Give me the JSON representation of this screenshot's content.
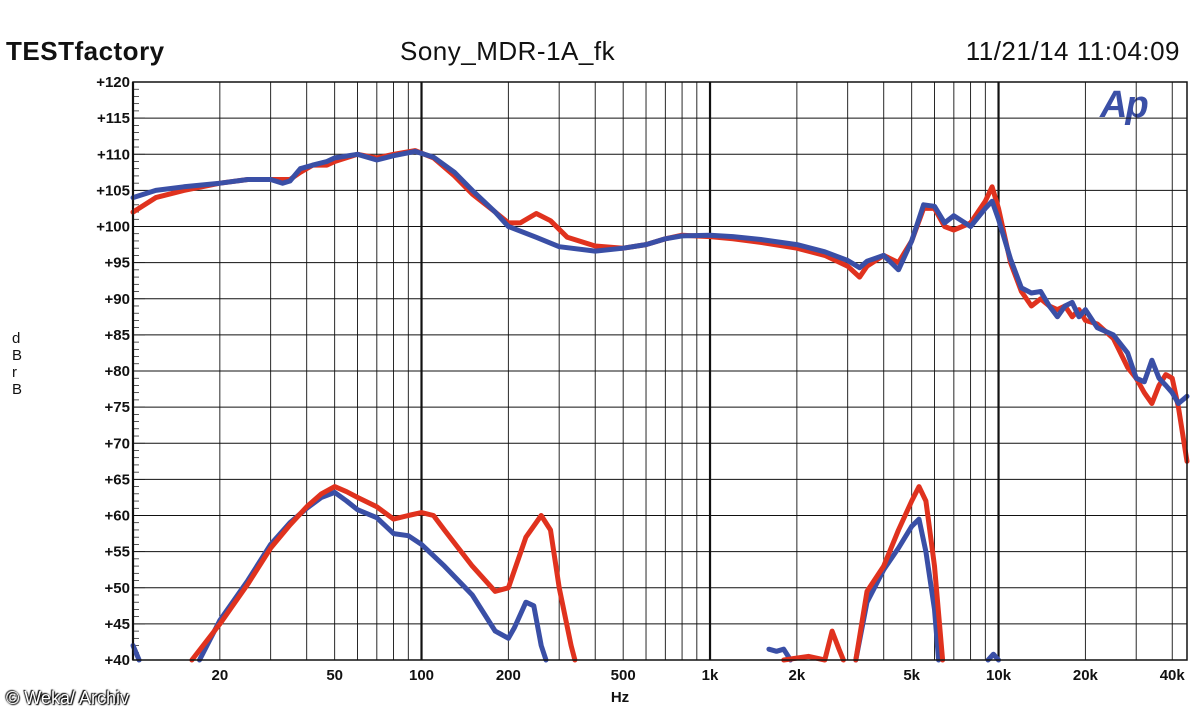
{
  "header": {
    "brand": "TESTfactory",
    "title": "Sony_MDR-1A_fk",
    "timestamp": "11/21/14 11:04:09"
  },
  "logo_text": "Ap",
  "credit": "© Weka/ Archiv",
  "chart_data": {
    "type": "line",
    "xscale": "log",
    "xlabel": "Hz",
    "ylabel": "dBr B",
    "xlim": [
      10,
      45000
    ],
    "ylim": [
      40,
      120
    ],
    "grid": true,
    "x_ticks": [
      {
        "v": 20,
        "label": "20"
      },
      {
        "v": 50,
        "label": "50"
      },
      {
        "v": 100,
        "label": "100"
      },
      {
        "v": 200,
        "label": "200"
      },
      {
        "v": 500,
        "label": "500"
      },
      {
        "v": 1000,
        "label": "1k"
      },
      {
        "v": 2000,
        "label": "2k"
      },
      {
        "v": 5000,
        "label": "5k"
      },
      {
        "v": 10000,
        "label": "10k"
      },
      {
        "v": 20000,
        "label": "20k"
      },
      {
        "v": 40000,
        "label": "40k"
      }
    ],
    "y_ticks": [
      {
        "v": 120,
        "label": "+120"
      },
      {
        "v": 115,
        "label": "+115"
      },
      {
        "v": 110,
        "label": "+110"
      },
      {
        "v": 105,
        "label": "+105"
      },
      {
        "v": 100,
        "label": "+100"
      },
      {
        "v": 95,
        "label": "+95"
      },
      {
        "v": 90,
        "label": "+90"
      },
      {
        "v": 85,
        "label": "+85"
      },
      {
        "v": 80,
        "label": "+80"
      },
      {
        "v": 75,
        "label": "+75"
      },
      {
        "v": 70,
        "label": "+70"
      },
      {
        "v": 65,
        "label": "+65"
      },
      {
        "v": 60,
        "label": "+60"
      },
      {
        "v": 55,
        "label": "+55"
      },
      {
        "v": 50,
        "label": "+50"
      },
      {
        "v": 45,
        "label": "+45"
      },
      {
        "v": 40,
        "label": "+40"
      }
    ],
    "colors": {
      "red": "#e0321e",
      "blue": "#3a4fa6"
    },
    "series": [
      {
        "color": "red",
        "segments": [
          [
            [
              10,
              102
            ],
            [
              12,
              104
            ],
            [
              15,
              105
            ],
            [
              20,
              106
            ],
            [
              25,
              106.5
            ],
            [
              30,
              106.5
            ],
            [
              35,
              106.5
            ],
            [
              38,
              107.5
            ],
            [
              42,
              108.5
            ],
            [
              47,
              108.5
            ],
            [
              50,
              109
            ],
            [
              60,
              110
            ],
            [
              70,
              109.5
            ],
            [
              80,
              110
            ],
            [
              95,
              110.5
            ],
            [
              110,
              109.5
            ],
            [
              130,
              107
            ],
            [
              150,
              104.5
            ],
            [
              180,
              102
            ],
            [
              200,
              100.5
            ],
            [
              220,
              100.5
            ],
            [
              250,
              101.8
            ],
            [
              280,
              100.8
            ],
            [
              320,
              98.5
            ],
            [
              400,
              97.3
            ],
            [
              500,
              97
            ],
            [
              600,
              97.5
            ],
            [
              700,
              98.3
            ],
            [
              800,
              98.8
            ],
            [
              1000,
              98.6
            ],
            [
              1200,
              98.3
            ],
            [
              1500,
              97.8
            ],
            [
              2000,
              97
            ],
            [
              2500,
              96
            ],
            [
              3000,
              94.5
            ],
            [
              3300,
              93
            ],
            [
              3500,
              94.5
            ],
            [
              4000,
              96
            ],
            [
              4500,
              95
            ],
            [
              5000,
              98
            ],
            [
              5500,
              102.5
            ],
            [
              6000,
              102.5
            ],
            [
              6500,
              100
            ],
            [
              7000,
              99.5
            ],
            [
              8000,
              100.5
            ],
            [
              9000,
              103.5
            ],
            [
              9500,
              105.5
            ],
            [
              10000,
              102.5
            ],
            [
              11000,
              95
            ],
            [
              12000,
              91
            ],
            [
              13000,
              89
            ],
            [
              14000,
              90
            ],
            [
              15000,
              89
            ],
            [
              16000,
              88.5
            ],
            [
              17000,
              89
            ],
            [
              18000,
              87.5
            ],
            [
              19000,
              88.5
            ],
            [
              20000,
              87
            ],
            [
              22000,
              86.5
            ],
            [
              25000,
              84.5
            ],
            [
              28000,
              80.5
            ],
            [
              30000,
              79
            ],
            [
              32000,
              77
            ],
            [
              34000,
              75.5
            ],
            [
              36000,
              78
            ],
            [
              38000,
              79.5
            ],
            [
              40000,
              79
            ],
            [
              42000,
              75
            ],
            [
              45000,
              67.5
            ]
          ]
        ]
      },
      {
        "color": "blue",
        "segments": [
          [
            [
              10,
              104
            ],
            [
              12,
              105
            ],
            [
              15,
              105.5
            ],
            [
              20,
              106
            ],
            [
              25,
              106.5
            ],
            [
              30,
              106.5
            ],
            [
              33,
              106
            ],
            [
              35,
              106.3
            ],
            [
              38,
              108
            ],
            [
              42,
              108.5
            ],
            [
              47,
              109
            ],
            [
              50,
              109.5
            ],
            [
              60,
              110
            ],
            [
              70,
              109.2
            ],
            [
              80,
              109.8
            ],
            [
              95,
              110.4
            ],
            [
              110,
              109.6
            ],
            [
              130,
              107.5
            ],
            [
              150,
              105
            ],
            [
              180,
              102
            ],
            [
              200,
              100
            ],
            [
              250,
              98.5
            ],
            [
              300,
              97.2
            ],
            [
              400,
              96.6
            ],
            [
              500,
              97
            ],
            [
              600,
              97.5
            ],
            [
              700,
              98.3
            ],
            [
              800,
              98.7
            ],
            [
              1000,
              98.8
            ],
            [
              1200,
              98.6
            ],
            [
              1500,
              98.2
            ],
            [
              2000,
              97.5
            ],
            [
              2500,
              96.5
            ],
            [
              3000,
              95.3
            ],
            [
              3300,
              94.3
            ],
            [
              3500,
              95.2
            ],
            [
              4000,
              96
            ],
            [
              4500,
              94
            ],
            [
              5000,
              98
            ],
            [
              5500,
              103
            ],
            [
              6000,
              102.8
            ],
            [
              6500,
              100.5
            ],
            [
              7000,
              101.5
            ],
            [
              8000,
              100
            ],
            [
              9000,
              102.5
            ],
            [
              9500,
              103.5
            ],
            [
              10000,
              101
            ],
            [
              11000,
              95.5
            ],
            [
              12000,
              91.5
            ],
            [
              13000,
              90.8
            ],
            [
              14000,
              91
            ],
            [
              15000,
              89
            ],
            [
              16000,
              87.5
            ],
            [
              17000,
              89
            ],
            [
              18000,
              89.5
            ],
            [
              19000,
              87.5
            ],
            [
              20000,
              88.5
            ],
            [
              22000,
              86
            ],
            [
              25000,
              85
            ],
            [
              28000,
              82.5
            ],
            [
              30000,
              79
            ],
            [
              32000,
              78.5
            ],
            [
              34000,
              81.5
            ],
            [
              36000,
              79
            ],
            [
              38000,
              78
            ],
            [
              40000,
              77
            ],
            [
              42000,
              75.5
            ],
            [
              45000,
              76.5
            ]
          ],
          [
            [
              10,
              42
            ],
            [
              10.5,
              40
            ]
          ],
          [
            [
              17,
              40
            ],
            [
              20,
              45.5
            ],
            [
              25,
              51
            ],
            [
              30,
              56
            ],
            [
              35,
              59
            ],
            [
              40,
              61
            ],
            [
              45,
              62.5
            ],
            [
              50,
              63.2
            ],
            [
              55,
              62
            ],
            [
              60,
              60.8
            ],
            [
              70,
              59.7
            ],
            [
              80,
              57.5
            ],
            [
              90,
              57.2
            ],
            [
              100,
              56
            ],
            [
              120,
              53
            ],
            [
              150,
              49
            ],
            [
              180,
              44
            ],
            [
              200,
              43
            ],
            [
              210,
              44.5
            ],
            [
              230,
              48
            ],
            [
              245,
              47.5
            ],
            [
              260,
              42
            ],
            [
              270,
              40
            ]
          ],
          [
            [
              1600,
              41.5
            ],
            [
              1700,
              41.2
            ],
            [
              1800,
              41.5
            ],
            [
              1900,
              40
            ]
          ],
          [
            [
              3200,
              40
            ],
            [
              3500,
              48
            ],
            [
              4000,
              52.5
            ],
            [
              4500,
              55.5
            ],
            [
              5000,
              58.5
            ],
            [
              5300,
              59.5
            ],
            [
              5600,
              55
            ],
            [
              6000,
              47
            ],
            [
              6200,
              40
            ]
          ],
          [
            [
              9200,
              40
            ],
            [
              9600,
              40.8
            ],
            [
              10000,
              40
            ]
          ]
        ]
      },
      {
        "color": "red",
        "segments": [
          [
            [
              16,
              40
            ],
            [
              20,
              45
            ],
            [
              25,
              50.5
            ],
            [
              30,
              55.5
            ],
            [
              35,
              58.7
            ],
            [
              40,
              61.2
            ],
            [
              45,
              63
            ],
            [
              50,
              64
            ],
            [
              55,
              63.3
            ],
            [
              60,
              62.5
            ],
            [
              70,
              61.2
            ],
            [
              80,
              59.5
            ],
            [
              90,
              60
            ],
            [
              100,
              60.4
            ],
            [
              110,
              60
            ],
            [
              120,
              58
            ],
            [
              150,
              53
            ],
            [
              180,
              49.5
            ],
            [
              200,
              50
            ],
            [
              230,
              57
            ],
            [
              260,
              60
            ],
            [
              280,
              58
            ],
            [
              300,
              50
            ],
            [
              330,
              42
            ],
            [
              340,
              40
            ]
          ],
          [
            [
              1800,
              40
            ],
            [
              2200,
              40.5
            ],
            [
              2500,
              40
            ],
            [
              2650,
              44
            ],
            [
              2800,
              41.5
            ],
            [
              2900,
              40
            ]
          ],
          [
            [
              3200,
              40
            ],
            [
              3500,
              49.5
            ],
            [
              4000,
              53
            ],
            [
              4500,
              58
            ],
            [
              5000,
              62
            ],
            [
              5300,
              64
            ],
            [
              5600,
              62
            ],
            [
              6000,
              53
            ],
            [
              6400,
              40
            ]
          ]
        ]
      }
    ]
  }
}
